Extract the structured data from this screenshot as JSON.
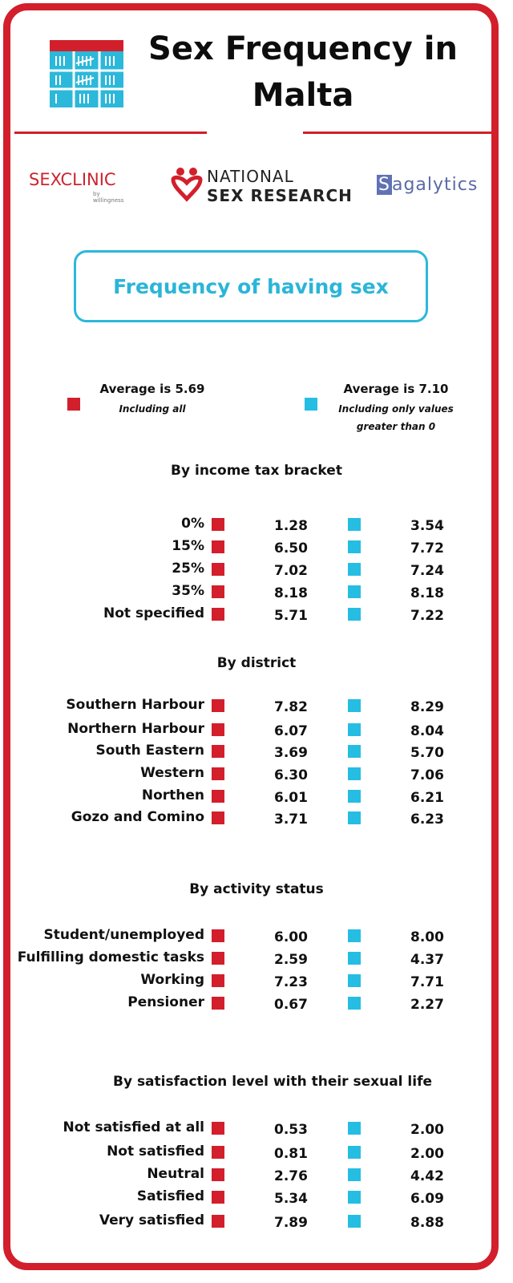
{
  "title": "Sex Frequency in Malta",
  "logos": {
    "sexclinic_main": "SEX",
    "sexclinic_thin": "CLINIC",
    "sexclinic_sub": "by willingness",
    "nsr_line1": "NATIONAL",
    "nsr_line2": "SEX RESEARCH",
    "sagalytics_first": "S",
    "sagalytics_rest": "agalytics"
  },
  "subtitle": "Frequency of having sex",
  "legend": {
    "red_label": "Average is 5.69",
    "red_note": "Including all",
    "cyan_label": "Average is 7.10",
    "cyan_note_line1": "Including only values",
    "cyan_note_line2": "greater than 0"
  },
  "colors": {
    "accent_red": "#d21f2b",
    "accent_cyan": "#26bde3"
  },
  "sections": [
    {
      "title": "By income tax bracket",
      "rows": [
        {
          "label": "0%",
          "all": "1.28",
          "nonzero": "3.54"
        },
        {
          "label": "15%",
          "all": "6.50",
          "nonzero": "7.72"
        },
        {
          "label": "25%",
          "all": "7.02",
          "nonzero": "7.24"
        },
        {
          "label": "35%",
          "all": "8.18",
          "nonzero": "8.18"
        },
        {
          "label": "Not specified",
          "all": "5.71",
          "nonzero": "7.22"
        }
      ]
    },
    {
      "title": "By district",
      "rows": [
        {
          "label": "Southern Harbour",
          "all": "7.82",
          "nonzero": "8.29"
        },
        {
          "label": "Northern Harbour",
          "all": "6.07",
          "nonzero": "8.04"
        },
        {
          "label": "South Eastern",
          "all": "3.69",
          "nonzero": "5.70"
        },
        {
          "label": "Western",
          "all": "6.30",
          "nonzero": "7.06"
        },
        {
          "label": "Northen",
          "all": "6.01",
          "nonzero": "6.21"
        },
        {
          "label": "Gozo and Comino",
          "all": "3.71",
          "nonzero": "6.23"
        }
      ]
    },
    {
      "title": "By activity status",
      "rows": [
        {
          "label": "Student/unemployed",
          "all": "6.00",
          "nonzero": "8.00"
        },
        {
          "label": "Fulfilling domestic tasks",
          "all": "2.59",
          "nonzero": "4.37"
        },
        {
          "label": "Working",
          "all": "7.23",
          "nonzero": "7.71"
        },
        {
          "label": "Pensioner",
          "all": "0.67",
          "nonzero": "2.27"
        }
      ]
    },
    {
      "title": "By satisfaction level with their sexual life",
      "rows": [
        {
          "label": "Not satisfied at all",
          "all": "0.53",
          "nonzero": "2.00"
        },
        {
          "label": "Not satisfied",
          "all": "0.81",
          "nonzero": "2.00"
        },
        {
          "label": "Neutral",
          "all": "2.76",
          "nonzero": "4.42"
        },
        {
          "label": "Satisfied",
          "all": "5.34",
          "nonzero": "6.09"
        },
        {
          "label": "Very satisfied",
          "all": "7.89",
          "nonzero": "8.88"
        }
      ]
    }
  ]
}
